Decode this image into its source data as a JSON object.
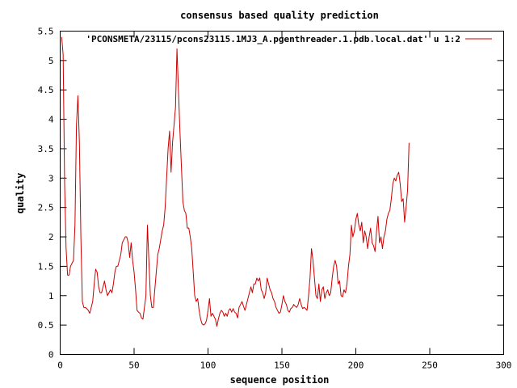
{
  "chart_data": {
    "type": "line",
    "title": "consensus based quality prediction",
    "xlabel": "sequence position",
    "ylabel": "quality",
    "xlim": [
      0,
      300
    ],
    "ylim": [
      0,
      5.5
    ],
    "x_ticks": [
      0,
      50,
      100,
      150,
      200,
      250,
      300
    ],
    "y_ticks": [
      0,
      0.5,
      1,
      1.5,
      2,
      2.5,
      3,
      3.5,
      4,
      4.5,
      5,
      5.5
    ],
    "x_tick_labels": [
      "0",
      "50",
      "100",
      "150",
      "200",
      "250",
      "300"
    ],
    "y_tick_labels": [
      "0",
      "0.5",
      "1",
      "1.5",
      "2",
      "2.5",
      "3",
      "3.5",
      "4",
      "4.5",
      "5",
      "5.5"
    ],
    "grid": false,
    "legend_position": "top-right",
    "series": [
      {
        "name": "'PCONSMETA/23115/pcons23115.1MJ3_A.pgenthreader.1.pdb.local.dat' u 1:2",
        "color": "#cc0000",
        "points": [
          [
            1,
            5.4
          ],
          [
            2,
            5.1
          ],
          [
            3,
            2.9
          ],
          [
            4,
            1.8
          ],
          [
            5,
            1.35
          ],
          [
            6,
            1.35
          ],
          [
            7,
            1.5
          ],
          [
            8,
            1.55
          ],
          [
            9,
            1.6
          ],
          [
            10,
            2.2
          ],
          [
            11,
            3.9
          ],
          [
            12,
            4.4
          ],
          [
            13,
            3.6
          ],
          [
            14,
            2.0
          ],
          [
            15,
            0.9
          ],
          [
            16,
            0.8
          ],
          [
            17,
            0.8
          ],
          [
            18,
            0.78
          ],
          [
            19,
            0.75
          ],
          [
            20,
            0.7
          ],
          [
            21,
            0.8
          ],
          [
            22,
            0.9
          ],
          [
            23,
            1.2
          ],
          [
            24,
            1.45
          ],
          [
            25,
            1.4
          ],
          [
            26,
            1.15
          ],
          [
            27,
            1.05
          ],
          [
            28,
            1.05
          ],
          [
            29,
            1.15
          ],
          [
            30,
            1.25
          ],
          [
            31,
            1.1
          ],
          [
            32,
            1.0
          ],
          [
            33,
            1.05
          ],
          [
            34,
            1.1
          ],
          [
            35,
            1.05
          ],
          [
            36,
            1.2
          ],
          [
            37,
            1.4
          ],
          [
            38,
            1.5
          ],
          [
            39,
            1.5
          ],
          [
            40,
            1.6
          ],
          [
            41,
            1.7
          ],
          [
            42,
            1.9
          ],
          [
            43,
            1.95
          ],
          [
            44,
            2.0
          ],
          [
            45,
            2.0
          ],
          [
            46,
            1.9
          ],
          [
            47,
            1.65
          ],
          [
            48,
            1.9
          ],
          [
            49,
            1.6
          ],
          [
            50,
            1.4
          ],
          [
            51,
            1.1
          ],
          [
            52,
            0.75
          ],
          [
            53,
            0.72
          ],
          [
            54,
            0.7
          ],
          [
            55,
            0.62
          ],
          [
            56,
            0.6
          ],
          [
            57,
            0.8
          ],
          [
            58,
            1.0
          ],
          [
            59,
            2.2
          ],
          [
            60,
            1.6
          ],
          [
            61,
            1.0
          ],
          [
            62,
            0.8
          ],
          [
            63,
            0.8
          ],
          [
            64,
            1.1
          ],
          [
            65,
            1.4
          ],
          [
            66,
            1.7
          ],
          [
            67,
            1.8
          ],
          [
            68,
            1.95
          ],
          [
            69,
            2.1
          ],
          [
            70,
            2.2
          ],
          [
            71,
            2.5
          ],
          [
            72,
            3.0
          ],
          [
            73,
            3.5
          ],
          [
            74,
            3.8
          ],
          [
            75,
            3.1
          ],
          [
            76,
            3.6
          ],
          [
            77,
            3.9
          ],
          [
            78,
            4.2
          ],
          [
            79,
            5.2
          ],
          [
            80,
            4.5
          ],
          [
            81,
            3.8
          ],
          [
            82,
            3.2
          ],
          [
            83,
            2.6
          ],
          [
            84,
            2.45
          ],
          [
            85,
            2.4
          ],
          [
            86,
            2.15
          ],
          [
            87,
            2.15
          ],
          [
            88,
            2.0
          ],
          [
            89,
            1.8
          ],
          [
            90,
            1.4
          ],
          [
            91,
            1.0
          ],
          [
            92,
            0.9
          ],
          [
            93,
            0.95
          ],
          [
            94,
            0.75
          ],
          [
            95,
            0.6
          ],
          [
            96,
            0.52
          ],
          [
            97,
            0.5
          ],
          [
            98,
            0.52
          ],
          [
            99,
            0.58
          ],
          [
            100,
            0.75
          ],
          [
            101,
            0.95
          ],
          [
            102,
            0.65
          ],
          [
            103,
            0.7
          ],
          [
            104,
            0.65
          ],
          [
            105,
            0.6
          ],
          [
            106,
            0.48
          ],
          [
            107,
            0.6
          ],
          [
            108,
            0.7
          ],
          [
            109,
            0.75
          ],
          [
            110,
            0.72
          ],
          [
            111,
            0.65
          ],
          [
            112,
            0.7
          ],
          [
            113,
            0.65
          ],
          [
            114,
            0.75
          ],
          [
            115,
            0.78
          ],
          [
            116,
            0.72
          ],
          [
            117,
            0.78
          ],
          [
            118,
            0.72
          ],
          [
            119,
            0.7
          ],
          [
            120,
            0.62
          ],
          [
            121,
            0.8
          ],
          [
            122,
            0.85
          ],
          [
            123,
            0.9
          ],
          [
            124,
            0.82
          ],
          [
            125,
            0.75
          ],
          [
            126,
            0.85
          ],
          [
            127,
            0.95
          ],
          [
            128,
            1.05
          ],
          [
            129,
            1.15
          ],
          [
            130,
            1.05
          ],
          [
            131,
            1.2
          ],
          [
            132,
            1.2
          ],
          [
            133,
            1.3
          ],
          [
            134,
            1.25
          ],
          [
            135,
            1.3
          ],
          [
            136,
            1.1
          ],
          [
            137,
            1.05
          ],
          [
            138,
            0.95
          ],
          [
            139,
            1.05
          ],
          [
            140,
            1.3
          ],
          [
            141,
            1.2
          ],
          [
            142,
            1.1
          ],
          [
            143,
            1.05
          ],
          [
            144,
            0.95
          ],
          [
            145,
            0.9
          ],
          [
            146,
            0.8
          ],
          [
            147,
            0.75
          ],
          [
            148,
            0.7
          ],
          [
            149,
            0.72
          ],
          [
            150,
            0.85
          ],
          [
            151,
            1.0
          ],
          [
            152,
            0.9
          ],
          [
            153,
            0.85
          ],
          [
            154,
            0.75
          ],
          [
            155,
            0.72
          ],
          [
            156,
            0.78
          ],
          [
            157,
            0.8
          ],
          [
            158,
            0.85
          ],
          [
            159,
            0.82
          ],
          [
            160,
            0.8
          ],
          [
            161,
            0.85
          ],
          [
            162,
            0.95
          ],
          [
            163,
            0.85
          ],
          [
            164,
            0.78
          ],
          [
            165,
            0.8
          ],
          [
            166,
            0.78
          ],
          [
            167,
            0.75
          ],
          [
            168,
            1.0
          ],
          [
            169,
            1.3
          ],
          [
            170,
            1.8
          ],
          [
            171,
            1.6
          ],
          [
            172,
            1.3
          ],
          [
            173,
            1.0
          ],
          [
            174,
            0.95
          ],
          [
            175,
            1.2
          ],
          [
            176,
            0.9
          ],
          [
            177,
            1.1
          ],
          [
            178,
            1.15
          ],
          [
            179,
            0.95
          ],
          [
            180,
            1.05
          ],
          [
            181,
            1.1
          ],
          [
            182,
            1.0
          ],
          [
            183,
            1.05
          ],
          [
            184,
            1.3
          ],
          [
            185,
            1.5
          ],
          [
            186,
            1.6
          ],
          [
            187,
            1.5
          ],
          [
            188,
            1.2
          ],
          [
            189,
            1.25
          ],
          [
            190,
            1.0
          ],
          [
            191,
            0.98
          ],
          [
            192,
            1.1
          ],
          [
            193,
            1.05
          ],
          [
            194,
            1.2
          ],
          [
            195,
            1.5
          ],
          [
            196,
            1.7
          ],
          [
            197,
            2.2
          ],
          [
            198,
            2.0
          ],
          [
            199,
            2.1
          ],
          [
            200,
            2.3
          ],
          [
            201,
            2.4
          ],
          [
            202,
            2.2
          ],
          [
            203,
            2.1
          ],
          [
            204,
            2.25
          ],
          [
            205,
            1.9
          ],
          [
            206,
            2.1
          ],
          [
            207,
            2.0
          ],
          [
            208,
            1.8
          ],
          [
            209,
            2.0
          ],
          [
            210,
            2.15
          ],
          [
            211,
            1.9
          ],
          [
            212,
            1.85
          ],
          [
            213,
            1.75
          ],
          [
            214,
            2.1
          ],
          [
            215,
            2.35
          ],
          [
            216,
            1.9
          ],
          [
            217,
            2.0
          ],
          [
            218,
            1.8
          ],
          [
            219,
            2.0
          ],
          [
            220,
            2.1
          ],
          [
            221,
            2.3
          ],
          [
            222,
            2.4
          ],
          [
            223,
            2.45
          ],
          [
            224,
            2.65
          ],
          [
            225,
            2.9
          ],
          [
            226,
            3.0
          ],
          [
            227,
            2.95
          ],
          [
            228,
            3.05
          ],
          [
            229,
            3.1
          ],
          [
            230,
            2.9
          ],
          [
            231,
            2.6
          ],
          [
            232,
            2.65
          ],
          [
            233,
            2.25
          ],
          [
            234,
            2.5
          ],
          [
            235,
            2.8
          ],
          [
            236,
            3.6
          ]
        ]
      }
    ]
  }
}
